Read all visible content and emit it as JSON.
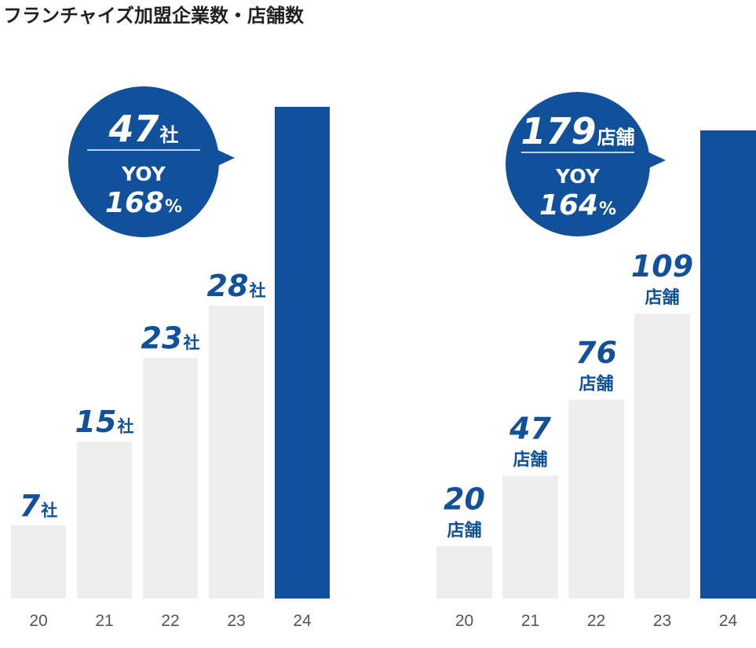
{
  "title": "フランチャイズ加盟企業数・店舗数",
  "colors": {
    "highlight": "#11509b",
    "bar": "#eeeeee",
    "label": "#11509b",
    "tick": "#555555",
    "title": "#222222",
    "bubble_text": "#ffffff"
  },
  "chart_data": [
    {
      "type": "bar",
      "name": "companies",
      "categories": [
        "20",
        "21",
        "22",
        "23",
        "24"
      ],
      "values": [
        7,
        15,
        23,
        28,
        47
      ],
      "unit": "社",
      "ylim": [
        0,
        48
      ],
      "highlight_index": 4,
      "value_labels": [
        {
          "num": "7",
          "unit": "社"
        },
        {
          "num": "15",
          "unit": "社"
        },
        {
          "num": "23",
          "unit": "社"
        },
        {
          "num": "28",
          "unit": "社"
        }
      ],
      "callout": {
        "num": "47",
        "unit": "社",
        "yoy_label": "YOY",
        "yoy_value": "168",
        "yoy_unit": "%"
      }
    },
    {
      "type": "bar",
      "name": "stores",
      "categories": [
        "20",
        "21",
        "22",
        "23",
        "24"
      ],
      "values": [
        20,
        47,
        76,
        109,
        179
      ],
      "unit": "店舗",
      "ylim": [
        0,
        180
      ],
      "highlight_index": 4,
      "value_labels": [
        {
          "num": "20",
          "unit": "店舗"
        },
        {
          "num": "47",
          "unit": "店舗"
        },
        {
          "num": "76",
          "unit": "店舗"
        },
        {
          "num": "109",
          "unit": "店舗"
        }
      ],
      "callout": {
        "num": "179",
        "unit": "店舗",
        "yoy_label": "YOY",
        "yoy_value": "164",
        "yoy_unit": "%"
      }
    }
  ]
}
